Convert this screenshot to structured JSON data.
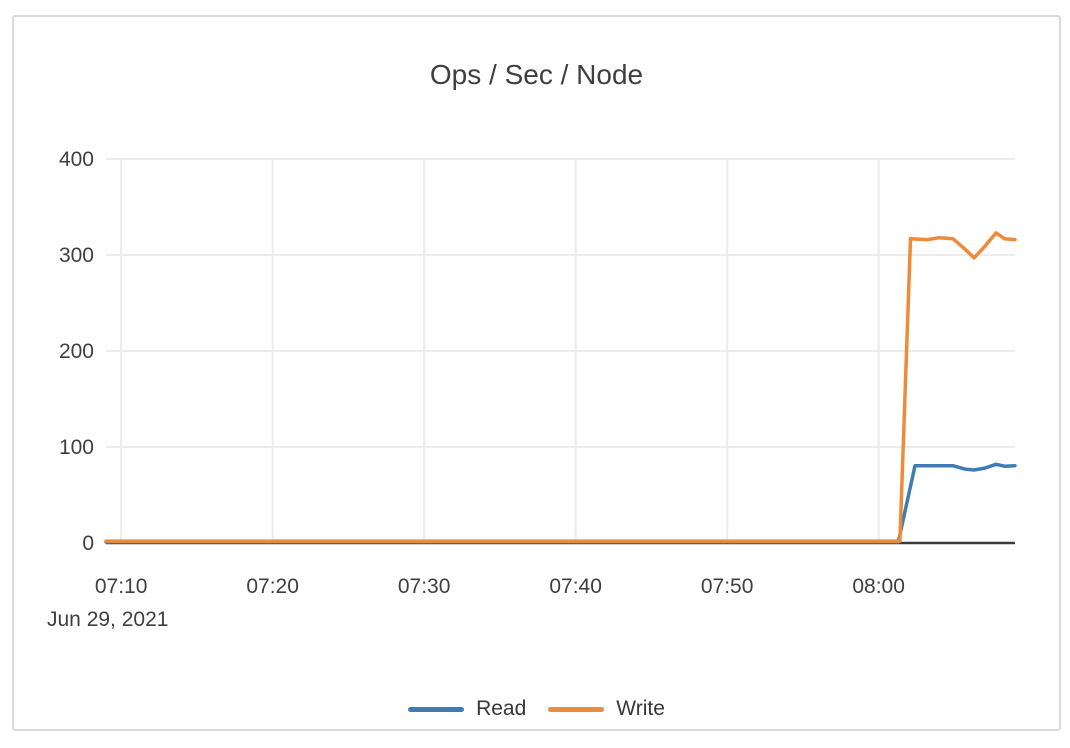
{
  "chart_data": {
    "type": "line",
    "title": "Ops / Sec / Node",
    "date_label": "Jun 29, 2021",
    "x_axis": {
      "unit": "minutes_after_07:00",
      "range": [
        9,
        69
      ],
      "ticks": [
        {
          "t": 10,
          "label": "07:10"
        },
        {
          "t": 20,
          "label": "07:20"
        },
        {
          "t": 30,
          "label": "07:30"
        },
        {
          "t": 40,
          "label": "07:40"
        },
        {
          "t": 50,
          "label": "07:50"
        },
        {
          "t": 60,
          "label": "08:00"
        }
      ]
    },
    "y_axis": {
      "range": [
        0,
        400
      ],
      "ticks": [
        0,
        100,
        200,
        300,
        400
      ]
    },
    "grid": true,
    "legend_position": "bottom",
    "series": [
      {
        "name": "Read",
        "color": "#3d7cb5",
        "points": [
          [
            9,
            1
          ],
          [
            61.3,
            1
          ],
          [
            62.4,
            80.5
          ],
          [
            64.9,
            80.5
          ],
          [
            65.7,
            77
          ],
          [
            66.3,
            76
          ],
          [
            67.0,
            78
          ],
          [
            67.75,
            82
          ],
          [
            68.3,
            80
          ],
          [
            69,
            80.5
          ]
        ]
      },
      {
        "name": "Write",
        "color": "#ee8b39",
        "points": [
          [
            9,
            2
          ],
          [
            61.4,
            2
          ],
          [
            62.1,
            317
          ],
          [
            63.2,
            316
          ],
          [
            64.0,
            318
          ],
          [
            64.9,
            317
          ],
          [
            65.7,
            306
          ],
          [
            66.3,
            297
          ],
          [
            67.0,
            309
          ],
          [
            67.75,
            323
          ],
          [
            68.3,
            317
          ],
          [
            69,
            316
          ]
        ]
      }
    ],
    "colors": {
      "grid_line": "#ececec",
      "axis_line": "#3b3b3b",
      "tick_text": "#3f3f3f",
      "card_border": "#dcdcdc",
      "background": "#ffffff"
    }
  }
}
